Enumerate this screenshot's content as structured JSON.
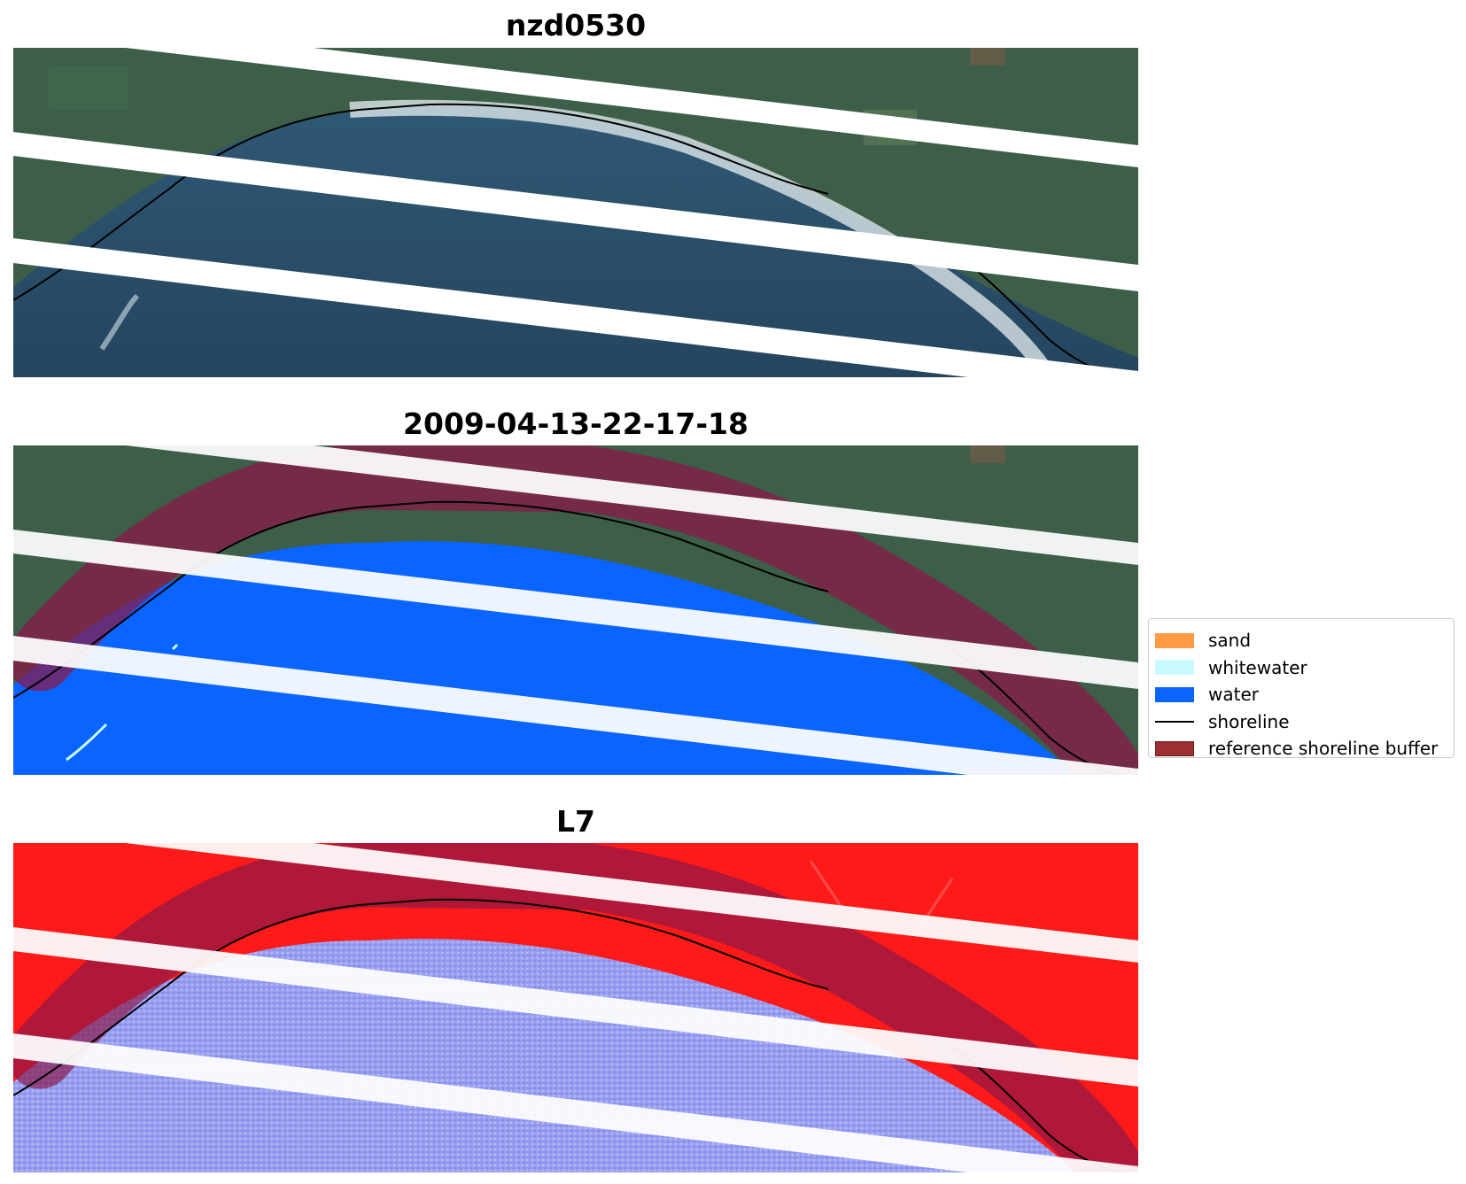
{
  "panels": [
    {
      "title": "nzd0530"
    },
    {
      "title": "2009-04-13-22-17-18"
    },
    {
      "title": "L7"
    }
  ],
  "legend": {
    "items": [
      {
        "label": "sand",
        "color": "#ff9a45",
        "kind": "patch"
      },
      {
        "label": "whitewater",
        "color": "#c8faff",
        "kind": "patch"
      },
      {
        "label": "water",
        "color": "#0a64ff",
        "kind": "patch"
      },
      {
        "label": "shoreline",
        "color": "#000000",
        "kind": "line"
      },
      {
        "label": "reference shoreline buffer",
        "color": "#9b2f32",
        "kind": "patch"
      }
    ]
  },
  "colors": {
    "land": "#3d5e48",
    "sea": "#2a4d6a",
    "water_class": "#0a64ff",
    "buffer": "#8a1848",
    "mndwi_land": "#ff1a1a",
    "mndwi_water": "#9aa0f0"
  }
}
